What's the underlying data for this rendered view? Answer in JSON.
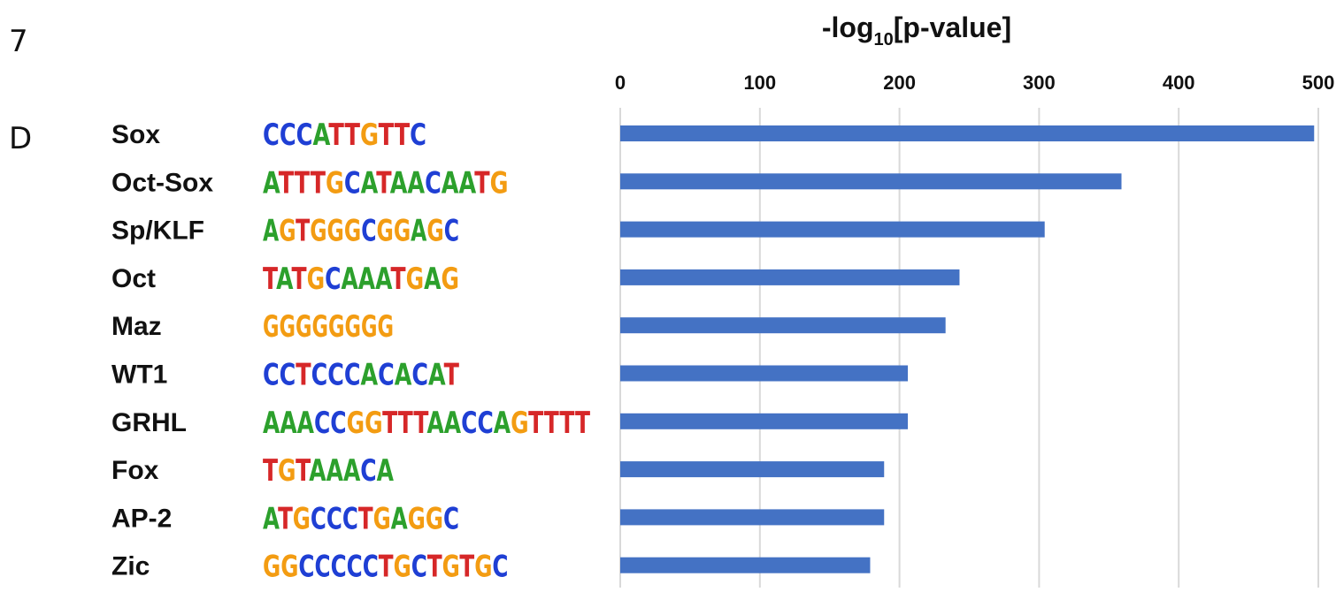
{
  "panel_labels": {
    "top": "7",
    "side": "D"
  },
  "colors": {
    "bar": "#4472C4",
    "grid": "#D9D9D9",
    "base": {
      "A": "#2CA02C",
      "C": "#1F3FD4",
      "G": "#F39C12",
      "T": "#D62728"
    }
  },
  "chart_data": {
    "type": "bar",
    "orientation": "horizontal",
    "title": "-log10[p-value]",
    "title_parts": {
      "main": "-log",
      "sub": "10",
      "rest": "[p-value]"
    },
    "xlabel": "-log10[p-value]",
    "ylabel": "",
    "xlim": [
      0,
      500
    ],
    "xticks": [
      0,
      100,
      200,
      300,
      400,
      500
    ],
    "x_axis_position": "top",
    "grid": true,
    "categories": [
      "Sox",
      "Oct-Sox",
      "Sp/KLF",
      "Oct",
      "Maz",
      "WT1",
      "GRHL",
      "Fox",
      "AP-2",
      "Zic"
    ],
    "values": [
      497,
      359,
      304,
      243,
      233,
      206,
      206,
      189,
      189,
      179
    ],
    "motifs": [
      "CCCATTGTTC",
      "ATTTGCATAACAATG",
      "AGTGGGCGGAGC",
      "TATGCAAATGAG",
      "GGGGGGGG",
      "CCTCCCACACAT",
      "AAACCGGTTTAACCAGTTTT",
      "TGTAAACA",
      "ATGCCCTGAGGC",
      "GGCCCCCTGCTGTGC"
    ]
  }
}
